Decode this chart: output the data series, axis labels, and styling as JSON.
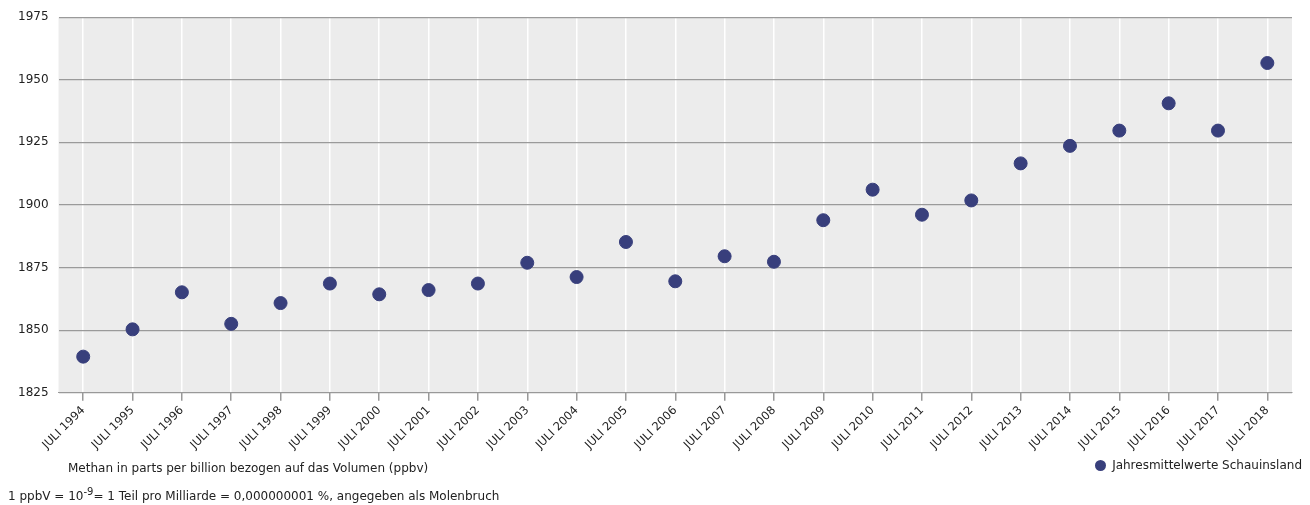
{
  "chart_data": {
    "type": "scatter",
    "categories": [
      "JULI 1994",
      "JULI 1995",
      "JULI 1996",
      "JULI 1997",
      "JULI 1998",
      "JULI 1999",
      "JULI 2000",
      "JULI 2001",
      "JULI 2002",
      "JULI 2003",
      "JULI 2004",
      "JULI 2005",
      "JULI 2006",
      "JULI 2007",
      "JULI 2008",
      "JULI 2009",
      "JULI 2010",
      "JULI 2011",
      "JULI 2012",
      "JULI 2013",
      "JULI 2014",
      "JULI 2015",
      "JULI 2016",
      "JULI 2017",
      "JULI 2018"
    ],
    "series": [
      {
        "name": "Jahresmittelwerte Schauinsland",
        "color": "#383f7c",
        "values": [
          1839.4,
          1850.3,
          1865.1,
          1852.5,
          1860.8,
          1868.6,
          1864.3,
          1866,
          1868.6,
          1876.9,
          1871.2,
          1885.2,
          1869.5,
          1879.5,
          1877.3,
          1893.9,
          1906.1,
          1896.1,
          1901.8,
          1916.6,
          1923.6,
          1929.7,
          1940.6,
          1929.7,
          1956.7
        ]
      }
    ],
    "ylim": [
      1825,
      1975
    ],
    "yticks": [
      1825,
      1850,
      1875,
      1900,
      1925,
      1950,
      1975
    ],
    "grid": true,
    "legend": "bottom right",
    "marker": "circle",
    "annotations": [
      "Methan in parts per billion bezogen auf das Volumen (ppbv)",
      "1 ppbV = 10$^{-9}$= 1 Teil pro Milliarde = 0,000000001 %, angegeben als Molenbruch"
    ]
  }
}
